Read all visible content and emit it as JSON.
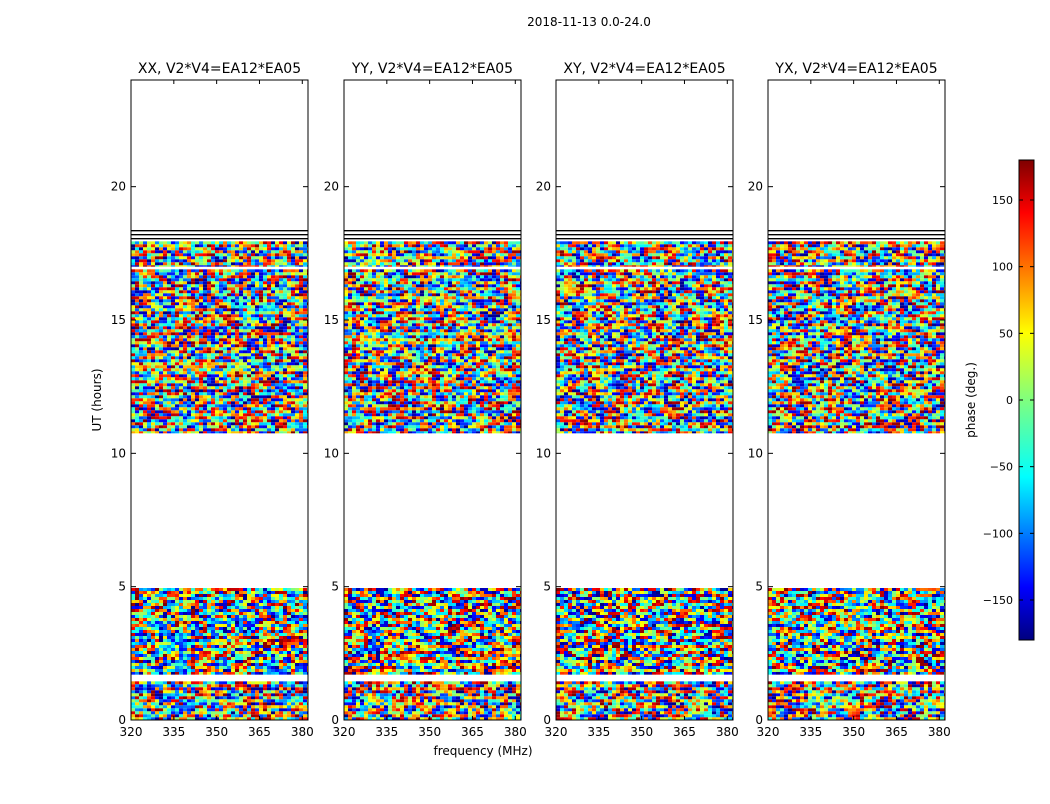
{
  "figure": {
    "suptitle": "2018-11-13 0.0-24.0"
  },
  "chart_data": {
    "type": "heatmap",
    "description_units": {
      "x": "MHz",
      "y": "hours",
      "z": "deg"
    },
    "xlabel": "frequency (MHz)",
    "ylabel": "UT (hours)",
    "xlim": [
      320,
      382
    ],
    "ylim": [
      0,
      24
    ],
    "xticks": [
      320,
      335,
      350,
      365,
      380
    ],
    "yticks": [
      0,
      5,
      10,
      15,
      20
    ],
    "colorbar": {
      "label": "phase (deg.)",
      "range": [
        -180,
        180
      ],
      "ticks": [
        150,
        100,
        50,
        0,
        -50,
        -100,
        -150
      ],
      "tick_labels": [
        "150",
        "100",
        "50",
        "0",
        "−50",
        "−100",
        "−150"
      ],
      "colormap": "jet"
    },
    "panels": [
      {
        "title": "XX, V2*V4=EA12*EA05"
      },
      {
        "title": "YY, V2*V4=EA12*EA05"
      },
      {
        "title": "XY, V2*V4=EA12*EA05"
      },
      {
        "title": "YX, V2*V4=EA12*EA05"
      }
    ],
    "data_time_ranges_hours": [
      [
        0.0,
        1.45
      ],
      [
        1.7,
        4.95
      ],
      [
        10.75,
        16.9
      ],
      [
        17.0,
        17.95
      ]
    ],
    "flagged_lines_hours": [
      18.05,
      18.2,
      18.35
    ]
  }
}
